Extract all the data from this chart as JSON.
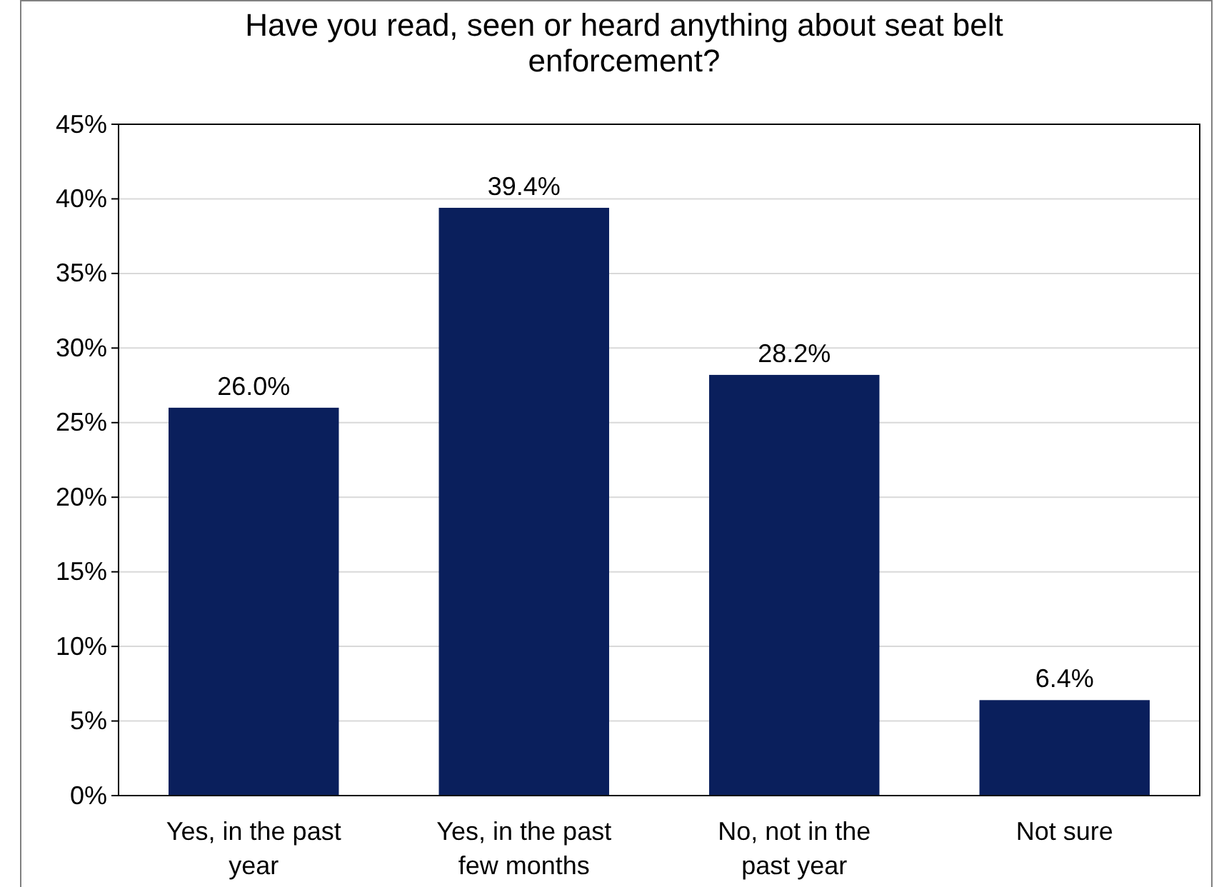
{
  "chart_data": {
    "type": "bar",
    "title": "Have you read, seen or heard anything about seat belt enforcement?",
    "categories": [
      "Yes, in the past year",
      "Yes, in the past few months",
      "No, not in the past year",
      "Not sure"
    ],
    "values": [
      26.0,
      39.4,
      28.2,
      6.4
    ],
    "color": "#0a1f5c",
    "value_labels": [
      "26.0%",
      "39.4%",
      "28.2%",
      "6.4%"
    ],
    "ylim": [
      0,
      45
    ],
    "yticks": [
      {
        "value": 0,
        "label": "0%"
      },
      {
        "value": 5,
        "label": "5%"
      },
      {
        "value": 10,
        "label": "10%"
      },
      {
        "value": 15,
        "label": "15%"
      },
      {
        "value": 20,
        "label": "20%"
      },
      {
        "value": 25,
        "label": "25%"
      },
      {
        "value": 30,
        "label": "30%"
      },
      {
        "value": 35,
        "label": "35%"
      },
      {
        "value": 40,
        "label": "40%"
      },
      {
        "value": 45,
        "label": "45%"
      }
    ],
    "grid": "y"
  }
}
